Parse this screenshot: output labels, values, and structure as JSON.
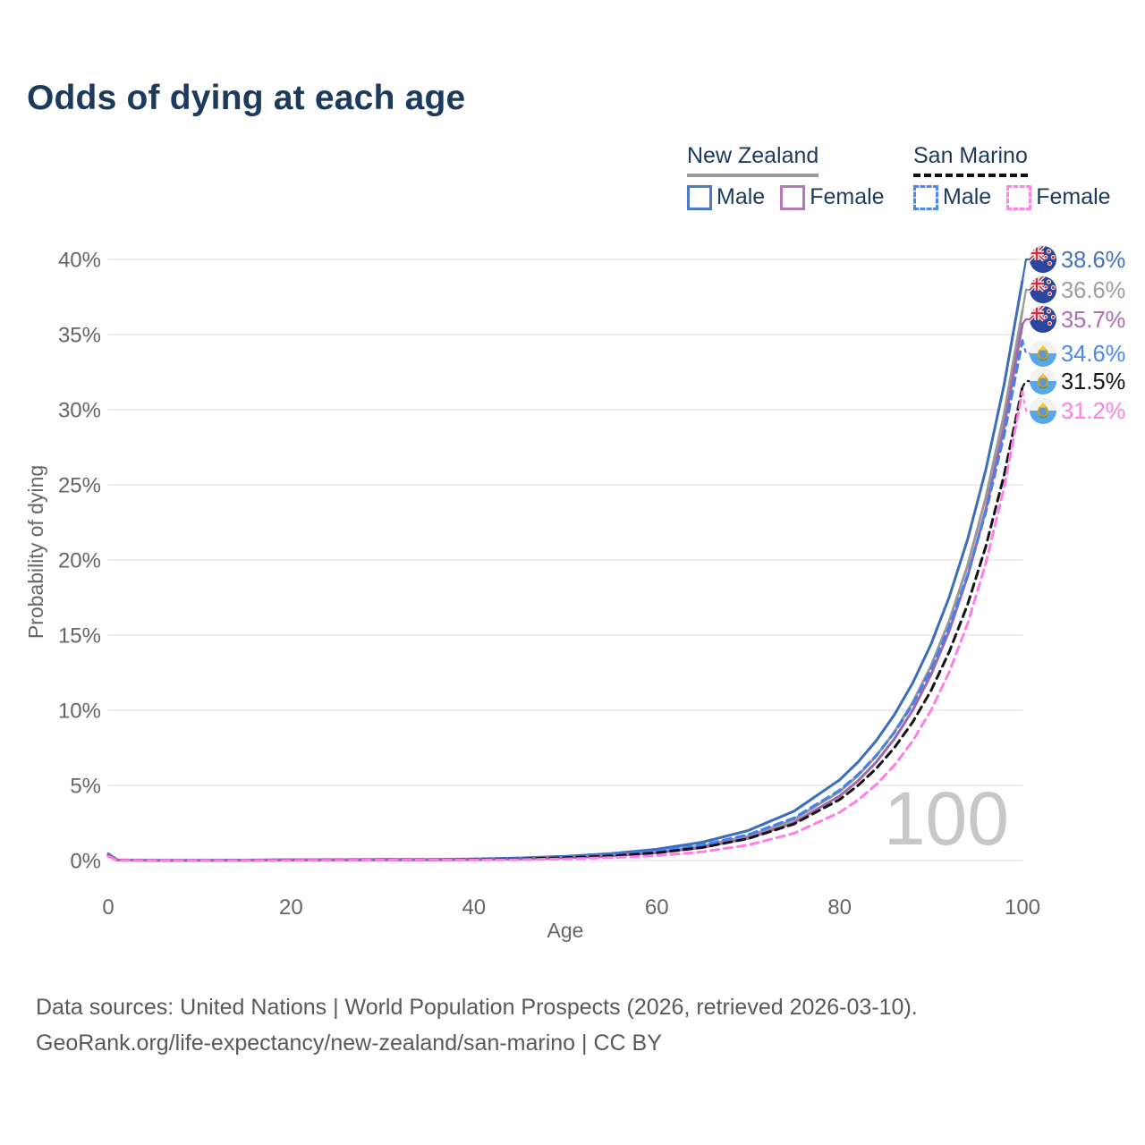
{
  "title": "Odds of dying at each age",
  "legend": {
    "groups": [
      {
        "id": "new-zealand",
        "title": "New Zealand",
        "underline_style": "solid",
        "underline_color": "#9b9b9b",
        "items": [
          {
            "id": "nz-male",
            "label": "Male",
            "color": "#4a7bc4",
            "dashed": false
          },
          {
            "id": "nz-female",
            "label": "Female",
            "color": "#b678b6",
            "dashed": false
          }
        ]
      },
      {
        "id": "san-marino",
        "title": "San Marino",
        "underline_style": "dashed",
        "underline_color": "#111111",
        "items": [
          {
            "id": "sm-male",
            "label": "Male",
            "color": "#4b87ee",
            "dashed": true
          },
          {
            "id": "sm-female",
            "label": "Female",
            "color": "#ff85e5",
            "dashed": true
          }
        ]
      }
    ]
  },
  "chart_data": {
    "type": "line",
    "title": "Odds of dying at each age",
    "xlabel": "Age",
    "ylabel": "Probability of dying",
    "xlim": [
      0,
      100
    ],
    "ylim_pct": [
      0,
      40
    ],
    "grid": "horizontal",
    "watermark": "100",
    "x_ticks": [
      0,
      20,
      40,
      60,
      80,
      100
    ],
    "x_tick_labels": [
      "0",
      "20",
      "40",
      "60",
      "80",
      "100"
    ],
    "y_ticks_pct": [
      0,
      5,
      10,
      15,
      20,
      25,
      30,
      35,
      40
    ],
    "y_tick_labels": [
      "0%",
      "5%",
      "10%",
      "15%",
      "20%",
      "25%",
      "30%",
      "35%",
      "40%"
    ],
    "ages": [
      0,
      1,
      5,
      10,
      15,
      20,
      25,
      30,
      35,
      40,
      45,
      50,
      55,
      60,
      65,
      70,
      75,
      80,
      82,
      84,
      86,
      88,
      90,
      92,
      94,
      96,
      98,
      100
    ],
    "series": [
      {
        "id": "nz-male",
        "name": "New Zealand Male",
        "flag": "nz",
        "color": "#3c6db8",
        "dashed": false,
        "end_label": "38.6%",
        "end_value_pct": 38.6,
        "end_label_color": "#4273bd",
        "values_pct": [
          0.45,
          0.04,
          0.01,
          0.01,
          0.03,
          0.06,
          0.06,
          0.07,
          0.08,
          0.1,
          0.17,
          0.28,
          0.46,
          0.75,
          1.22,
          2.0,
          3.28,
          5.37,
          6.54,
          7.97,
          9.71,
          11.82,
          14.4,
          17.54,
          21.37,
          26.02,
          31.69,
          38.6
        ]
      },
      {
        "id": "nz-both",
        "name": "New Zealand Both sexes",
        "flag": "nz",
        "color": "#999999",
        "dashed": false,
        "end_label": "36.6%",
        "end_value_pct": 36.6,
        "end_label_color": "#9e9e9e",
        "values_pct": [
          0.4,
          0.035,
          0.008,
          0.008,
          0.02,
          0.04,
          0.045,
          0.05,
          0.06,
          0.07,
          0.12,
          0.2,
          0.34,
          0.57,
          0.97,
          1.62,
          2.73,
          4.59,
          5.65,
          6.95,
          8.56,
          10.53,
          12.96,
          15.95,
          19.63,
          24.16,
          29.74,
          36.6
        ]
      },
      {
        "id": "nz-female",
        "name": "New Zealand Female",
        "flag": "nz",
        "color": "#a266aa",
        "dashed": false,
        "end_label": "35.7%",
        "end_value_pct": 35.7,
        "end_label_color": "#ad6cb3",
        "values_pct": [
          0.38,
          0.03,
          0.007,
          0.007,
          0.015,
          0.025,
          0.03,
          0.035,
          0.05,
          0.06,
          0.11,
          0.18,
          0.3,
          0.51,
          0.87,
          1.49,
          2.52,
          4.29,
          5.3,
          6.55,
          8.1,
          10.01,
          12.37,
          15.29,
          18.9,
          23.37,
          28.88,
          35.7
        ]
      },
      {
        "id": "sm-male",
        "name": "San Marino Male",
        "flag": "sm",
        "color": "#417ff2",
        "dashed": true,
        "end_label": "34.6%",
        "end_value_pct": 34.6,
        "end_label_color": "#4b87ee",
        "values_pct": [
          0.35,
          0.03,
          0.008,
          0.008,
          0.02,
          0.04,
          0.04,
          0.05,
          0.06,
          0.09,
          0.14,
          0.23,
          0.38,
          0.63,
          1.04,
          1.72,
          2.83,
          4.68,
          5.71,
          6.98,
          8.52,
          10.41,
          12.72,
          15.54,
          18.98,
          23.19,
          28.32,
          34.6
        ]
      },
      {
        "id": "sm-both",
        "name": "San Marino Both sexes",
        "flag": "sm",
        "color": "#141414",
        "dashed": true,
        "end_label": "31.5%",
        "end_value_pct": 31.5,
        "end_label_color": "#141414",
        "values_pct": [
          0.3,
          0.025,
          0.007,
          0.007,
          0.015,
          0.03,
          0.035,
          0.04,
          0.05,
          0.07,
          0.11,
          0.19,
          0.31,
          0.52,
          0.87,
          1.46,
          2.43,
          4.06,
          4.99,
          6.12,
          7.51,
          9.22,
          11.31,
          13.89,
          17.04,
          20.91,
          25.67,
          31.5
        ]
      },
      {
        "id": "sm-female",
        "name": "San Marino Female",
        "flag": "sm",
        "color": "#ff7de5",
        "dashed": true,
        "end_label": "31.2%",
        "end_value_pct": 31.2,
        "end_label_color": "#ff7fe8",
        "values_pct": [
          0.28,
          0.02,
          0.006,
          0.006,
          0.012,
          0.02,
          0.025,
          0.03,
          0.04,
          0.04,
          0.06,
          0.11,
          0.19,
          0.33,
          0.58,
          1.03,
          1.81,
          3.2,
          4.02,
          5.05,
          6.34,
          7.96,
          10.0,
          12.55,
          15.76,
          19.79,
          24.85,
          31.2
        ]
      }
    ]
  },
  "footer": {
    "line1": "Data sources: United Nations | World Population Prospects (2026, retrieved 2026-03-10).",
    "line2": "GeoRank.org/life-expectancy/new-zealand/san-marino | CC BY"
  }
}
